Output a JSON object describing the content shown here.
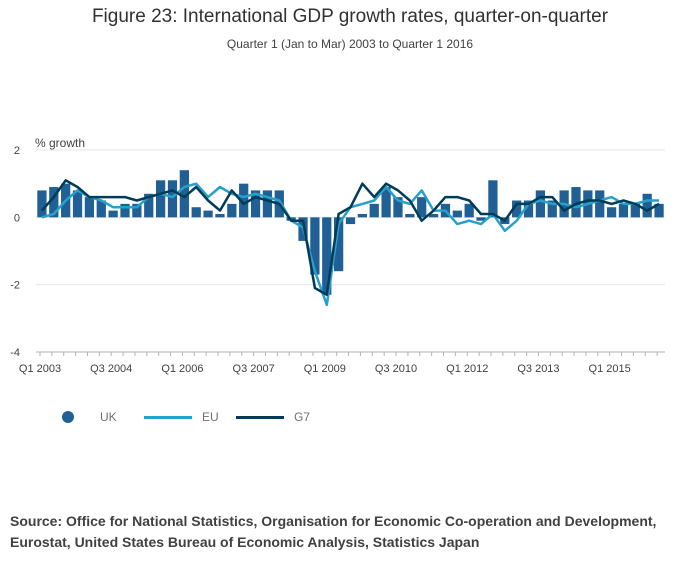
{
  "title": "Figure 23: International GDP growth rates, quarter-on-quarter",
  "subtitle": "Quarter 1 (Jan to Mar) 2003 to Quarter 1 2016",
  "ylabel": "% growth",
  "source": "Source: Office for National Statistics, Organisation for Economic Co-operation and Development, Eurostat, United States Bureau of Economic Analysis, Statistics Japan",
  "legend": {
    "uk": "UK",
    "eu": "EU",
    "g7": "G7"
  },
  "colors": {
    "uk": "#206095",
    "eu": "#27a0cc",
    "g7": "#003c57",
    "grid": "#e6e6e6",
    "axis": "#414042"
  },
  "chart_data": {
    "type": "bar",
    "title": "Figure 23: International GDP growth rates, quarter-on-quarter",
    "subtitle": "Quarter 1 (Jan to Mar) 2003 to Quarter 1 2016",
    "ylabel": "% growth",
    "xlabel": "",
    "ylim": [
      -4,
      2
    ],
    "yticks": [
      "2",
      "0",
      "-2",
      "-4"
    ],
    "grid": true,
    "legend_position": "bottom-left",
    "x_tick_labels": [
      {
        "label": "Q1 2003",
        "index": 0
      },
      {
        "label": "Q3 2004",
        "index": 6
      },
      {
        "label": "Q1 2006",
        "index": 12
      },
      {
        "label": "Q3 2007",
        "index": 18
      },
      {
        "label": "Q1 2009",
        "index": 24
      },
      {
        "label": "Q3 2010",
        "index": 30
      },
      {
        "label": "Q1 2012",
        "index": 36
      },
      {
        "label": "Q3 2013",
        "index": 42
      },
      {
        "label": "Q1 2015",
        "index": 48
      }
    ],
    "categories": [
      "Q1 2003",
      "Q2 2003",
      "Q3 2003",
      "Q4 2003",
      "Q1 2004",
      "Q2 2004",
      "Q3 2004",
      "Q4 2004",
      "Q1 2005",
      "Q2 2005",
      "Q3 2005",
      "Q4 2005",
      "Q1 2006",
      "Q2 2006",
      "Q3 2006",
      "Q4 2006",
      "Q1 2007",
      "Q2 2007",
      "Q3 2007",
      "Q4 2007",
      "Q1 2008",
      "Q2 2008",
      "Q3 2008",
      "Q4 2008",
      "Q1 2009",
      "Q2 2009",
      "Q3 2009",
      "Q4 2009",
      "Q1 2010",
      "Q2 2010",
      "Q3 2010",
      "Q4 2010",
      "Q1 2011",
      "Q2 2011",
      "Q3 2011",
      "Q4 2011",
      "Q1 2012",
      "Q2 2012",
      "Q3 2012",
      "Q4 2012",
      "Q1 2013",
      "Q2 2013",
      "Q3 2013",
      "Q4 2013",
      "Q1 2014",
      "Q2 2014",
      "Q3 2014",
      "Q4 2014",
      "Q1 2015",
      "Q2 2015",
      "Q3 2015",
      "Q4 2015",
      "Q1 2016"
    ],
    "series": [
      {
        "name": "UK",
        "type": "bar",
        "values": [
          0.8,
          0.9,
          1.0,
          0.8,
          0.6,
          0.5,
          0.2,
          0.4,
          0.4,
          0.7,
          1.1,
          1.1,
          1.4,
          0.3,
          0.2,
          0.1,
          0.4,
          1.0,
          0.8,
          0.8,
          0.8,
          -0.1,
          -0.7,
          -1.7,
          -2.3,
          -1.6,
          -0.2,
          0.1,
          0.4,
          0.9,
          0.6,
          0.1,
          0.6,
          0.1,
          0.4,
          0.2,
          0.4,
          -0.1,
          1.1,
          -0.2,
          0.5,
          0.5,
          0.8,
          0.5,
          0.8,
          0.9,
          0.8,
          0.8,
          0.3,
          0.4,
          0.4,
          0.7,
          0.4
        ]
      },
      {
        "name": "EU",
        "type": "line",
        "values": [
          0.0,
          0.1,
          0.5,
          0.8,
          0.6,
          0.5,
          0.3,
          0.3,
          0.3,
          0.6,
          0.7,
          0.6,
          0.9,
          1.0,
          0.6,
          0.9,
          0.7,
          0.6,
          0.7,
          0.6,
          0.5,
          -0.1,
          -0.3,
          -1.6,
          -2.6,
          -0.2,
          0.3,
          0.4,
          0.5,
          0.9,
          0.5,
          0.4,
          0.8,
          0.2,
          0.2,
          -0.2,
          -0.1,
          -0.2,
          0.1,
          -0.4,
          -0.1,
          0.4,
          0.5,
          0.4,
          0.4,
          0.3,
          0.4,
          0.5,
          0.6,
          0.4,
          0.4,
          0.5,
          0.5
        ]
      },
      {
        "name": "G7",
        "type": "line",
        "values": [
          0.2,
          0.6,
          1.1,
          0.9,
          0.6,
          0.6,
          0.6,
          0.6,
          0.5,
          0.6,
          0.7,
          0.8,
          0.6,
          0.9,
          0.5,
          0.2,
          0.8,
          0.4,
          0.6,
          0.5,
          0.4,
          -0.1,
          -0.1,
          -2.1,
          -2.3,
          0.1,
          0.3,
          1.0,
          0.6,
          1.0,
          0.8,
          0.5,
          -0.1,
          0.2,
          0.6,
          0.6,
          0.5,
          0.1,
          0.1,
          -0.1,
          0.4,
          0.4,
          0.6,
          0.6,
          0.2,
          0.4,
          0.5,
          0.5,
          0.4,
          0.5,
          0.4,
          0.2,
          0.4
        ]
      }
    ]
  }
}
